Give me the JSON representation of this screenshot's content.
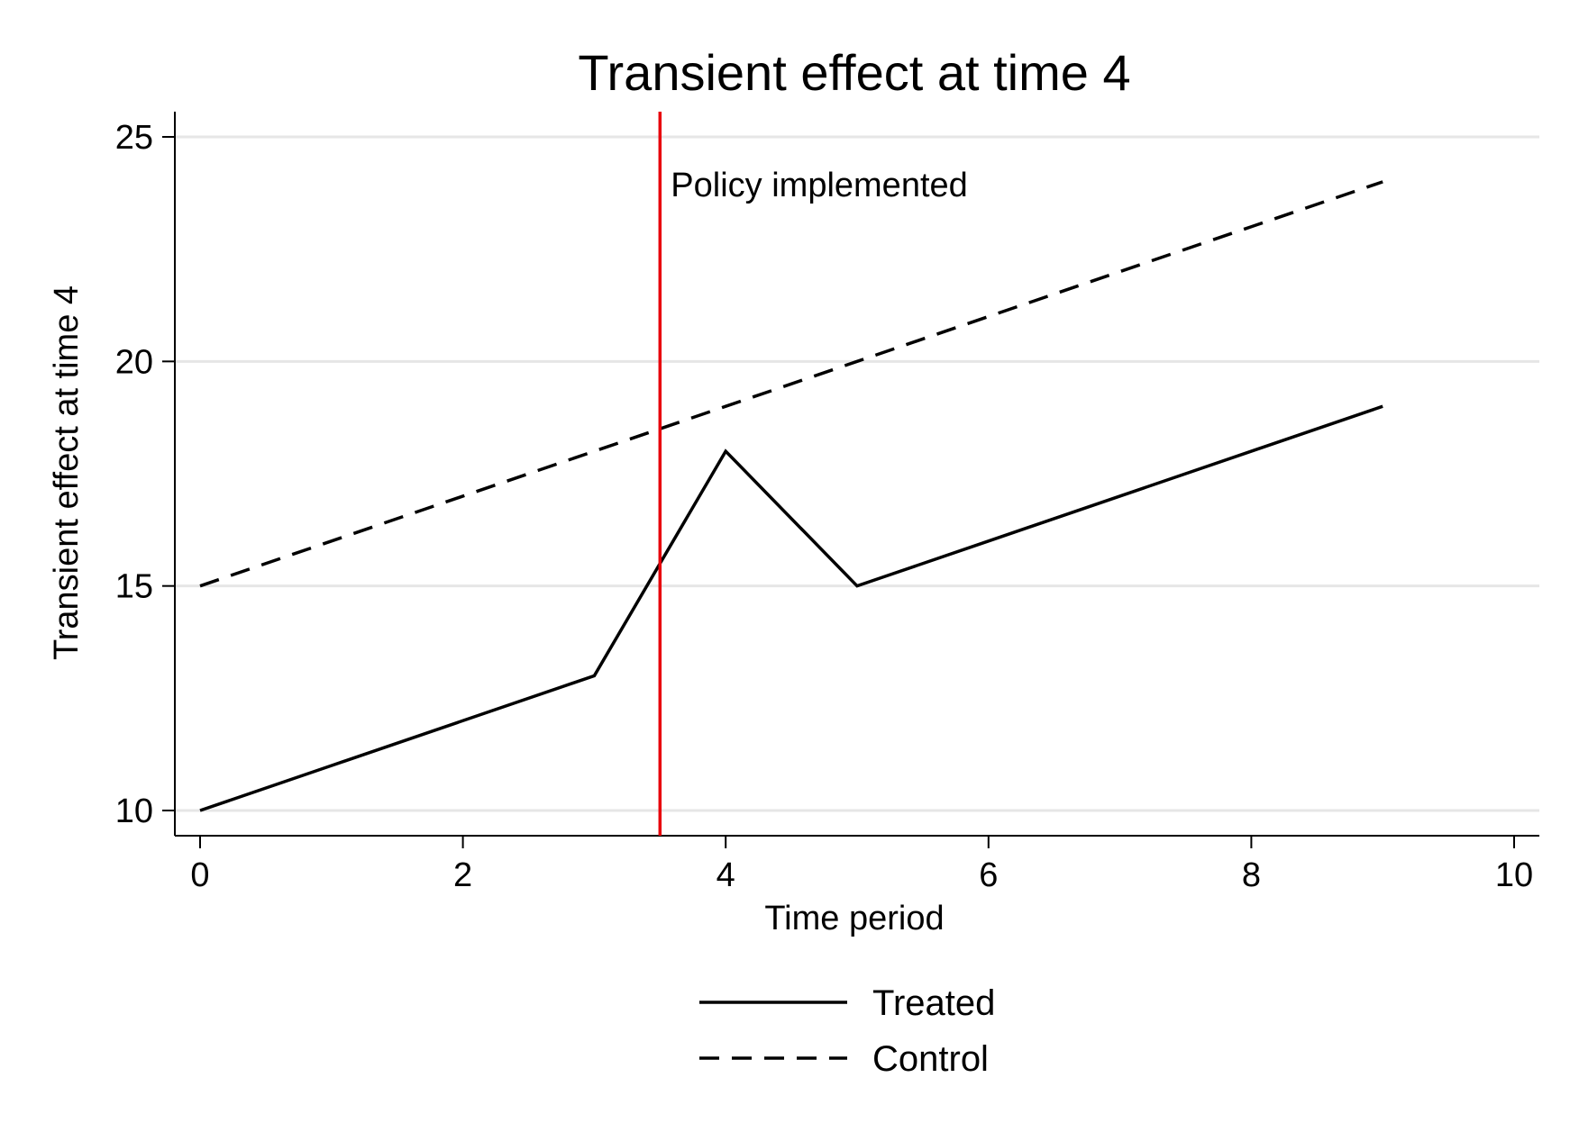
{
  "chart_data": {
    "type": "line",
    "title": "Transient effect at time 4",
    "xlabel": "Time period",
    "ylabel": "Transient effect at time 4",
    "xlim": [
      0,
      10
    ],
    "ylim": [
      10,
      25
    ],
    "xticks": [
      0,
      2,
      4,
      6,
      8,
      10
    ],
    "xtick_labels": [
      "0",
      "2",
      "4",
      "6",
      "8",
      "10"
    ],
    "yticks": [
      10,
      15,
      20,
      25
    ],
    "ytick_labels": [
      "10",
      "15",
      "20",
      "25"
    ],
    "grid": "horizontal",
    "legend_position": "bottom",
    "series": [
      {
        "name": "Treated",
        "style": "solid",
        "color": "#000000",
        "x": [
          0,
          1,
          2,
          3,
          4,
          5,
          6,
          7,
          8,
          9
        ],
        "y": [
          10,
          11,
          12,
          13,
          18,
          15,
          16,
          17,
          18,
          19
        ]
      },
      {
        "name": "Control",
        "style": "dashed",
        "color": "#000000",
        "x": [
          0,
          1,
          2,
          3,
          4,
          5,
          6,
          7,
          8,
          9
        ],
        "y": [
          15,
          16,
          17,
          18,
          19,
          20,
          21,
          22,
          23,
          24
        ]
      }
    ],
    "reference_line": {
      "x": 3.5,
      "color": "#e8000b",
      "label": "Policy implemented"
    }
  }
}
